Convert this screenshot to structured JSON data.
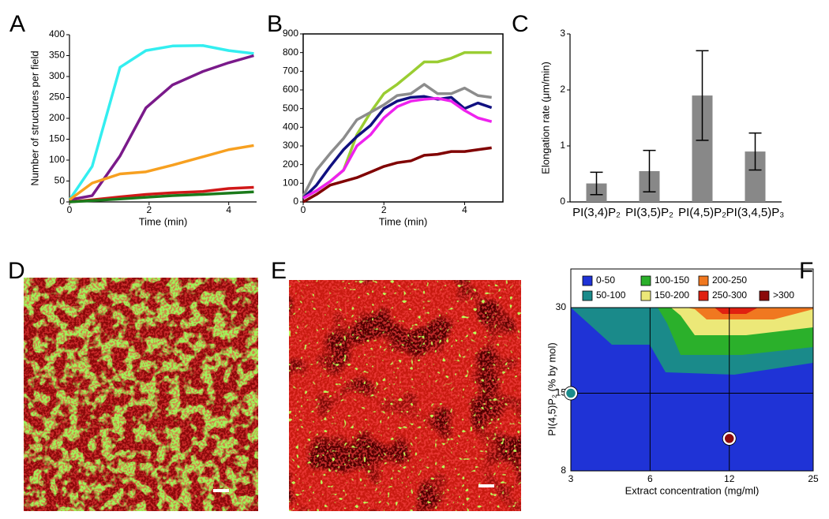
{
  "chart_data": [
    {
      "panel": "A",
      "type": "line",
      "xlabel": "Time (min)",
      "ylabel": "Number of structures per field",
      "x": [
        0,
        0.57,
        1.27,
        1.92,
        2.59,
        3.35,
        4,
        4.63
      ],
      "xlim": [
        0,
        4.7
      ],
      "xticks": [
        0,
        2,
        4
      ],
      "ylim": [
        0,
        400
      ],
      "yticks": [
        0,
        50,
        100,
        150,
        200,
        250,
        300,
        350,
        400
      ],
      "series": [
        {
          "color": "#33eef0",
          "values": [
            5,
            85,
            322,
            362,
            373,
            374,
            362,
            355
          ]
        },
        {
          "color": "#7a1a8a",
          "values": [
            5,
            15,
            110,
            225,
            280,
            312,
            333,
            350
          ]
        },
        {
          "color": "#f7a020",
          "values": [
            5,
            45,
            67,
            72,
            88,
            108,
            125,
            135
          ]
        },
        {
          "color": "#d01818",
          "values": [
            0,
            5,
            12,
            18,
            22,
            25,
            32,
            35
          ]
        },
        {
          "color": "#1a7a1a",
          "values": [
            0,
            3,
            7,
            11,
            15,
            18,
            21,
            24
          ]
        }
      ]
    },
    {
      "panel": "B",
      "type": "line",
      "xlabel": "Time (min)",
      "x": [
        0,
        0.33,
        0.67,
        1,
        1.33,
        1.67,
        2,
        2.33,
        2.67,
        3,
        3.33,
        3.67,
        4,
        4.33,
        4.67
      ],
      "xlim": [
        0,
        4.95
      ],
      "xticks": [
        0,
        2,
        4
      ],
      "ylim": [
        0,
        900
      ],
      "yticks": [
        0,
        100,
        200,
        300,
        400,
        500,
        600,
        700,
        800,
        900
      ],
      "series": [
        {
          "color": "#9acd32",
          "values": [
            20,
            60,
            110,
            170,
            360,
            480,
            580,
            630,
            690,
            750,
            750,
            770,
            800,
            800,
            800
          ]
        },
        {
          "color": "#8c8c8c",
          "values": [
            30,
            170,
            260,
            340,
            440,
            480,
            520,
            570,
            580,
            630,
            580,
            580,
            610,
            570,
            560
          ]
        },
        {
          "color": "#101080",
          "values": [
            20,
            90,
            190,
            280,
            350,
            410,
            500,
            540,
            560,
            565,
            550,
            560,
            500,
            530,
            505
          ]
        },
        {
          "color": "#ee22ee",
          "values": [
            20,
            60,
            110,
            170,
            300,
            360,
            450,
            510,
            540,
            550,
            555,
            540,
            490,
            450,
            430
          ]
        },
        {
          "color": "#800000",
          "values": [
            0,
            40,
            90,
            110,
            130,
            160,
            190,
            210,
            220,
            250,
            255,
            270,
            270,
            280,
            290
          ]
        }
      ]
    },
    {
      "panel": "C",
      "type": "bar",
      "ylabel": "Elongation rate (μm/min)",
      "categories": [
        "PI(3,4)P₂",
        "PI(3,5)P₂",
        "PI(4,5)P₂",
        "PI(3,4,5)P₃"
      ],
      "values": [
        0.33,
        0.55,
        1.9,
        0.9
      ],
      "errors": [
        0.2,
        0.37,
        0.8,
        0.33
      ],
      "color": "#888888",
      "ylim": [
        0,
        3
      ],
      "yticks": [
        0,
        1,
        2,
        3
      ]
    },
    {
      "panel": "F",
      "type": "contour",
      "xlabel": "Extract concentration (mg/ml)",
      "ylabel": "PI(4,5)P₂ (% by mol)",
      "xscale": "log",
      "yscale": "log",
      "xlim": [
        3,
        25
      ],
      "xticks": [
        3,
        6,
        12,
        25
      ],
      "ylim": [
        8,
        30
      ],
      "yticks": [
        8,
        15,
        30
      ],
      "grid": true,
      "levels": [
        {
          "label": "0-50",
          "color": "#1f33d6"
        },
        {
          "label": "50-100",
          "color": "#1a8a8a"
        },
        {
          "label": "100-150",
          "color": "#2bb02b"
        },
        {
          "label": "150-200",
          "color": "#ece878"
        },
        {
          "label": "200-250",
          "color": "#f07820"
        },
        {
          "label": "250-300",
          "color": "#e02010"
        },
        {
          "label": ">300",
          "color": "#8b0a0a"
        }
      ],
      "points": {
        "x": [
          3,
          12
        ],
        "y": [
          15,
          10.4
        ],
        "color": [
          "#1a8a8a",
          "#8b0a0a"
        ]
      }
    }
  ],
  "images": [
    {
      "panel": "D"
    },
    {
      "panel": "E"
    }
  ]
}
